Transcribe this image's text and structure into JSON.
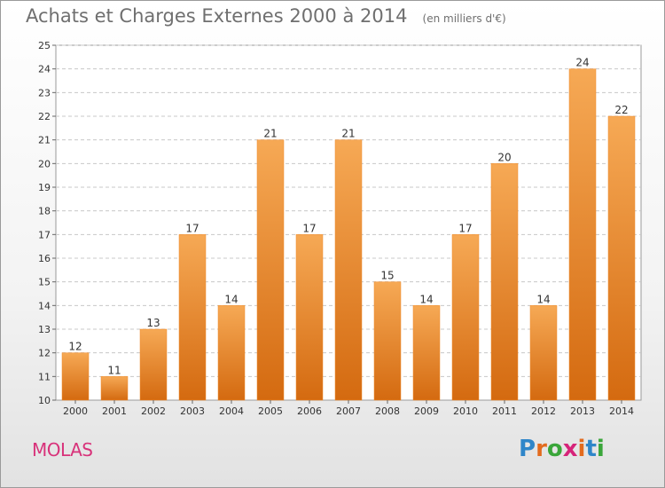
{
  "header": {
    "title": "Achats et Charges Externes 2000 à 2014",
    "subtitle": "(en milliers d'€)"
  },
  "footer": {
    "commune": "MOLAS",
    "logo_letters": [
      "P",
      "r",
      "o",
      "x",
      "i",
      "t",
      "i"
    ],
    "logo_colors": [
      "#2f86c9",
      "#e36b1e",
      "#3aa63a",
      "#d6247a",
      "#e36b1e",
      "#2f86c9",
      "#3aa63a"
    ]
  },
  "chart_data": {
    "type": "bar",
    "categories": [
      "2000",
      "2001",
      "2002",
      "2003",
      "2004",
      "2005",
      "2006",
      "2007",
      "2008",
      "2009",
      "2010",
      "2011",
      "2012",
      "2013",
      "2014"
    ],
    "values": [
      12,
      11,
      13,
      17,
      14,
      21,
      17,
      21,
      15,
      14,
      17,
      20,
      14,
      24,
      22
    ],
    "ylim": [
      10,
      25
    ],
    "yticks": [
      10,
      11,
      12,
      13,
      14,
      15,
      16,
      17,
      18,
      19,
      20,
      21,
      22,
      23,
      24,
      25
    ],
    "grid": "horizontal dashed",
    "bar_color": "#f08a2a",
    "bar_color_light": "#f6a955",
    "bar_color_dark": "#d46a10"
  }
}
